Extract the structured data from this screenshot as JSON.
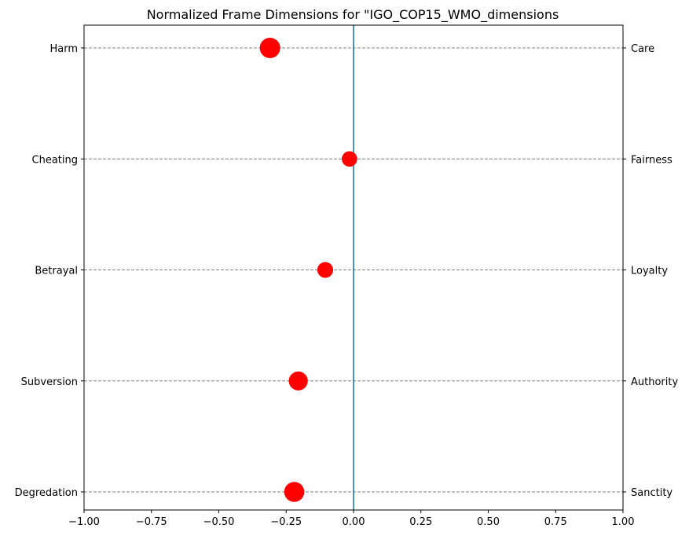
{
  "chart_data": {
    "type": "scatter",
    "title": "Normalized Frame Dimensions for \"IGO_COP15_WMO_dimensions",
    "xlim": [
      -1.0,
      1.0
    ],
    "x_ticks": [
      -1.0,
      -0.75,
      -0.5,
      -0.25,
      0.0,
      0.25,
      0.5,
      0.75,
      1.0
    ],
    "x_tick_labels": [
      "−1.00",
      "−0.75",
      "−0.50",
      "−0.25",
      "0.00",
      "0.25",
      "0.50",
      "0.75",
      "1.00"
    ],
    "grid": "horizontal dashed lines at each category",
    "center_line_x": 0.0,
    "center_line_color": "#1f77b4",
    "marker_color": "#ff0000",
    "categories": [
      {
        "left": "Harm",
        "right": "Care",
        "value": -0.31,
        "weight": 1.0
      },
      {
        "left": "Cheating",
        "right": "Fairness",
        "value": -0.015,
        "weight": 0.3
      },
      {
        "left": "Betrayal",
        "right": "Loyalty",
        "value": -0.105,
        "weight": 0.35
      },
      {
        "left": "Subversion",
        "right": "Authority",
        "value": -0.205,
        "weight": 0.8
      },
      {
        "left": "Degredation",
        "right": "Sanctity",
        "value": -0.22,
        "weight": 0.95
      }
    ]
  }
}
